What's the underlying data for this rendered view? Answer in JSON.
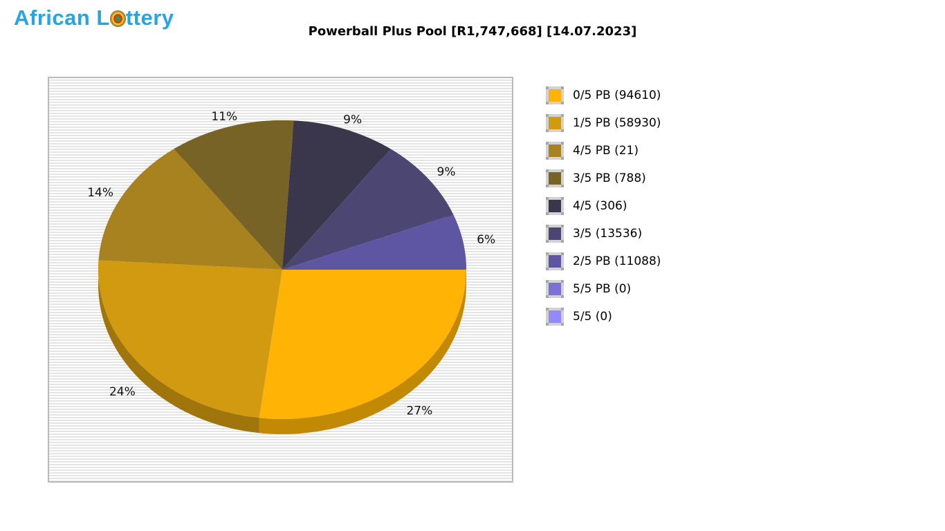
{
  "logo": {
    "part1": "African L",
    "part2": "ttery",
    "color": "#25A5E4",
    "ball_icon": "lottery-ball-icon"
  },
  "title": "Powerball Plus Pool [R1,747,668] [14.07.2023]",
  "chart_data": {
    "type": "pie",
    "style": "3d",
    "title": "Powerball Plus Pool [R1,747,668] [14.07.2023]",
    "pool_amount": "R1,747,668",
    "draw_date": "14.07.2023",
    "start_angle_deg": 0,
    "direction": "clockwise",
    "legend_position": "right",
    "background": {
      "stripe_light": "#ffffff",
      "stripe_dark": "#e4e4e4",
      "border": "#b9b9b9"
    },
    "slices": [
      {
        "label": "0/5 PB",
        "count": 94610,
        "percent": 27,
        "percent_label": "27%",
        "legend_text": "0/5 PB (94610)",
        "color": "#FFB405"
      },
      {
        "label": "1/5 PB",
        "count": 58930,
        "percent": 24,
        "percent_label": "24%",
        "legend_text": "1/5 PB (58930)",
        "color": "#D19A10"
      },
      {
        "label": "4/5 PB",
        "count": 21,
        "percent": 14,
        "percent_label": "14%",
        "legend_text": "4/5 PB (21)",
        "color": "#A8821E"
      },
      {
        "label": "3/5 PB",
        "count": 788,
        "percent": 11,
        "percent_label": "11%",
        "legend_text": "3/5 PB (788)",
        "color": "#786327"
      },
      {
        "label": "4/5",
        "count": 306,
        "percent": 9,
        "percent_label": "9%",
        "legend_text": "4/5 (306)",
        "color": "#3A364B"
      },
      {
        "label": "3/5",
        "count": 13536,
        "percent": 9,
        "percent_label": "9%",
        "legend_text": "3/5 (13536)",
        "color": "#4C4672"
      },
      {
        "label": "2/5 PB",
        "count": 11088,
        "percent": 6,
        "percent_label": "6%",
        "legend_text": "2/5 PB (11088)",
        "color": "#5E56A2"
      },
      {
        "label": "5/5 PB",
        "count": 0,
        "percent": 0,
        "legend_text": "5/5 PB (0)",
        "color": "#7B70D4"
      },
      {
        "label": "5/5",
        "count": 0,
        "percent": 0,
        "legend_text": "5/5 (0)",
        "color": "#9189FC"
      }
    ]
  }
}
